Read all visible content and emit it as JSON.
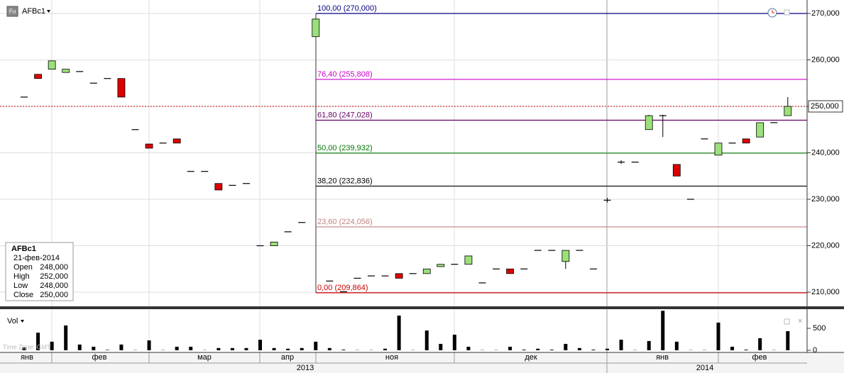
{
  "header": {
    "symbol": "AFBc1"
  },
  "watermark": "Time Zone: GMT",
  "info_box": {
    "symbol": "AFBc1",
    "date": "21-фев-2014",
    "rows": [
      {
        "label": "Open",
        "value": "248,000"
      },
      {
        "label": "High",
        "value": "252,000"
      },
      {
        "label": "Low",
        "value": "248,000"
      },
      {
        "label": "Close",
        "value": "250,000"
      }
    ]
  },
  "time_axis": {
    "months": [
      "янв",
      "фев",
      "мар",
      "апр",
      "ноя",
      "дек",
      "янв",
      "фев"
    ],
    "years": [
      "2013",
      "2014"
    ]
  },
  "chart_data": [
    {
      "type": "candlestick",
      "categories": [
        null,
        null,
        null,
        null,
        null,
        null,
        null,
        null,
        null,
        null,
        null,
        null,
        null,
        null,
        null,
        null,
        null,
        null,
        null,
        null,
        null,
        null,
        null,
        null,
        null,
        null,
        null,
        null,
        null,
        null,
        null,
        null,
        null,
        null,
        null,
        null,
        null,
        null,
        null,
        null,
        null,
        null,
        null,
        null,
        null,
        null,
        null,
        null,
        null,
        null,
        null,
        null,
        null,
        null,
        null,
        null
      ],
      "open": [
        252000,
        256900,
        258000,
        257300,
        257500,
        255000,
        256000,
        256000,
        245000,
        241900,
        242100,
        243000,
        236000,
        236000,
        233400,
        233000,
        233400,
        220000,
        220000,
        223000,
        225000,
        265000,
        212400,
        210100,
        213000,
        213500,
        213500,
        214000,
        214000,
        214000,
        215500,
        216000,
        216000,
        212000,
        215000,
        215000,
        215000,
        219000,
        219000,
        216600,
        219000,
        215000,
        229800,
        238000,
        238000,
        245000,
        248000,
        237500,
        230000,
        243000,
        239500,
        242100,
        243000,
        243400,
        246500,
        248000
      ],
      "high": [
        252000,
        256900,
        259800,
        258000,
        257500,
        255000,
        256000,
        256000,
        245000,
        241900,
        242100,
        243000,
        236000,
        236000,
        233400,
        233000,
        233400,
        220000,
        220800,
        223000,
        225000,
        268800,
        212400,
        210100,
        213000,
        213500,
        213500,
        214000,
        214000,
        215000,
        216000,
        216000,
        217800,
        212000,
        215000,
        215000,
        215000,
        219000,
        219000,
        219000,
        219000,
        215000,
        230300,
        238400,
        238000,
        248200,
        248200,
        237500,
        230000,
        243000,
        242100,
        242100,
        243000,
        246500,
        246500,
        252000
      ],
      "low": [
        252000,
        256000,
        258000,
        257300,
        257500,
        255000,
        256000,
        252000,
        245000,
        241000,
        242100,
        242100,
        236000,
        236000,
        232000,
        233000,
        233400,
        220000,
        220000,
        223000,
        225000,
        265000,
        212400,
        210100,
        213000,
        213500,
        213500,
        213000,
        214000,
        214000,
        215500,
        216000,
        216000,
        212000,
        215000,
        214000,
        215000,
        219000,
        219000,
        215000,
        219000,
        215000,
        229300,
        237600,
        238000,
        245000,
        243400,
        235000,
        230000,
        243000,
        239500,
        242100,
        242100,
        243400,
        246500,
        248000
      ],
      "close": [
        252000,
        256000,
        259800,
        258000,
        257500,
        255000,
        256000,
        252000,
        245000,
        241000,
        242100,
        242100,
        236000,
        236000,
        232000,
        233000,
        233400,
        220000,
        220800,
        223000,
        225000,
        268800,
        212400,
        210100,
        213000,
        213500,
        213500,
        213000,
        214000,
        215000,
        216000,
        216000,
        217800,
        212000,
        215000,
        214000,
        215000,
        219000,
        219000,
        219000,
        219000,
        215000,
        229800,
        238000,
        238000,
        248000,
        248000,
        235000,
        230000,
        243000,
        242100,
        242100,
        242100,
        246500,
        246500,
        250000
      ],
      "up_color": "#9be07a",
      "down_color": "#dd0000",
      "ylim": [
        206950,
        272900
      ],
      "yticks": [
        {
          "value": 210000,
          "label": "210,000"
        },
        {
          "value": 220000,
          "label": "220,000"
        },
        {
          "value": 230000,
          "label": "230,000"
        },
        {
          "value": 240000,
          "label": "240,000"
        },
        {
          "value": 250000,
          "label": "250,000"
        },
        {
          "value": 260000,
          "label": "260,000"
        },
        {
          "value": 270000,
          "label": "270,000"
        }
      ],
      "grid": true,
      "last_price": {
        "value": 250000,
        "label": "250,000",
        "color": "#cc0000"
      },
      "levels": [
        {
          "label": "100,00 (270,000)",
          "value": 270000,
          "color": "#000080"
        },
        {
          "label": "76,40 (255,808)",
          "value": 255808,
          "color": "#cc00cc"
        },
        {
          "label": "61,80 (247,028)",
          "value": 247028,
          "color": "#660066"
        },
        {
          "label": "50,00 (239,932)",
          "value": 239932,
          "color": "#007700"
        },
        {
          "label": "38,20 (232,836)",
          "value": 232836,
          "color": "#000000"
        },
        {
          "label": "23,60 (224,056)",
          "value": 224056,
          "color": "#c08080"
        },
        {
          "label": "0,00 (209,864)",
          "value": 209864,
          "color": "#cc0000"
        }
      ]
    },
    {
      "type": "bar",
      "title": "Vol",
      "values": [
        65,
        400,
        195,
        565,
        130,
        80,
        10,
        130,
        5,
        225,
        5,
        80,
        80,
        5,
        50,
        50,
        50,
        240,
        50,
        35,
        50,
        195,
        50,
        15,
        5,
        5,
        35,
        790,
        5,
        450,
        145,
        355,
        80,
        5,
        5,
        80,
        15,
        35,
        15,
        145,
        50,
        15,
        35,
        240,
        5,
        210,
        900,
        195,
        5,
        5,
        630,
        80,
        15,
        275,
        5,
        435
      ],
      "color": "#000000",
      "ylim": [
        -50,
        920
      ],
      "yticks": [
        0,
        500
      ]
    }
  ]
}
